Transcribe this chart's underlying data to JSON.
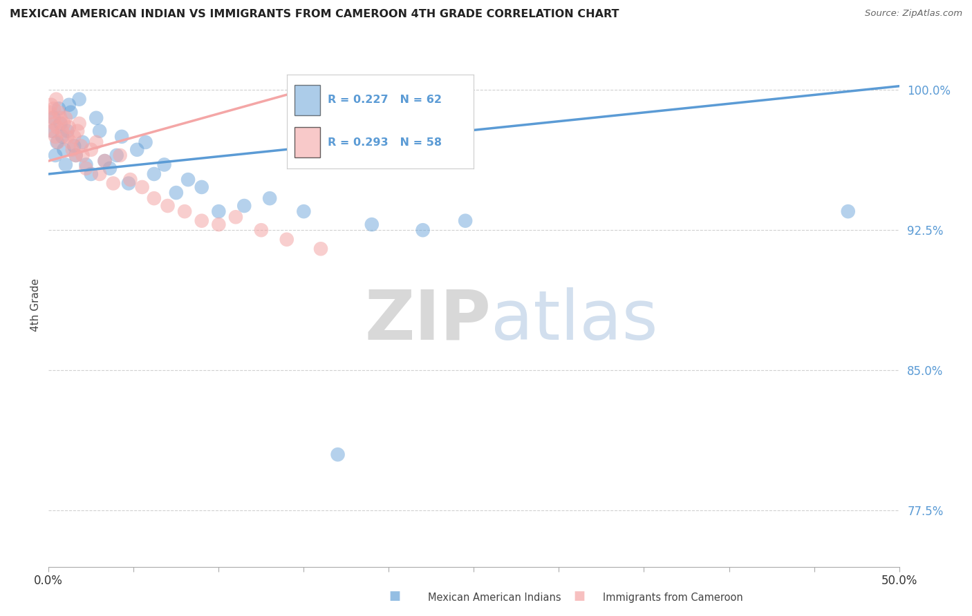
{
  "title": "MEXICAN AMERICAN INDIAN VS IMMIGRANTS FROM CAMEROON 4TH GRADE CORRELATION CHART",
  "source": "Source: ZipAtlas.com",
  "ylabel": "4th Grade",
  "y_ticks": [
    77.5,
    85.0,
    92.5,
    100.0
  ],
  "y_tick_labels": [
    "77.5%",
    "85.0%",
    "92.5%",
    "100.0%"
  ],
  "x_min": 0.0,
  "x_max": 50.0,
  "y_min": 74.5,
  "y_max": 102.5,
  "blue_color": "#5b9bd5",
  "pink_color": "#f4a6a6",
  "blue_r": "R = 0.227",
  "blue_n": "N = 62",
  "pink_r": "R = 0.293",
  "pink_n": "N = 58",
  "blue_label": "Mexican American Indians",
  "pink_label": "Immigrants from Cameroon",
  "blue_trend_x": [
    0.0,
    50.0
  ],
  "blue_trend_y": [
    95.5,
    100.2
  ],
  "pink_trend_x": [
    0.0,
    17.0
  ],
  "pink_trend_y": [
    96.2,
    100.5
  ],
  "blue_points_x": [
    0.2,
    0.3,
    0.4,
    0.5,
    0.6,
    0.7,
    0.8,
    0.9,
    1.0,
    1.1,
    1.2,
    1.3,
    1.5,
    1.6,
    1.8,
    2.0,
    2.2,
    2.5,
    2.8,
    3.0,
    3.3,
    3.6,
    4.0,
    4.3,
    4.7,
    5.2,
    5.7,
    6.2,
    6.8,
    7.5,
    8.2,
    9.0,
    10.0,
    11.5,
    13.0,
    15.0,
    17.0,
    19.0,
    22.0,
    24.5,
    47.0
  ],
  "blue_points_y": [
    97.8,
    98.5,
    96.5,
    97.2,
    99.0,
    98.2,
    97.5,
    96.8,
    96.0,
    97.8,
    99.2,
    98.8,
    97.0,
    96.5,
    99.5,
    97.2,
    96.0,
    95.5,
    98.5,
    97.8,
    96.2,
    95.8,
    96.5,
    97.5,
    95.0,
    96.8,
    97.2,
    95.5,
    96.0,
    94.5,
    95.2,
    94.8,
    93.5,
    93.8,
    94.2,
    93.5,
    80.5,
    92.8,
    92.5,
    93.0,
    93.5
  ],
  "pink_points_x": [
    0.1,
    0.15,
    0.2,
    0.25,
    0.3,
    0.35,
    0.4,
    0.45,
    0.5,
    0.55,
    0.6,
    0.7,
    0.8,
    0.9,
    1.0,
    1.1,
    1.2,
    1.3,
    1.4,
    1.5,
    1.6,
    1.7,
    1.8,
    1.9,
    2.0,
    2.2,
    2.5,
    2.8,
    3.0,
    3.3,
    3.8,
    4.2,
    4.8,
    5.5,
    6.2,
    7.0,
    8.0,
    9.0,
    10.0,
    11.0,
    12.5,
    14.0,
    16.0
  ],
  "pink_points_y": [
    98.8,
    99.2,
    98.5,
    97.8,
    99.0,
    98.2,
    97.5,
    99.5,
    98.0,
    97.2,
    98.8,
    98.5,
    97.8,
    98.2,
    98.5,
    97.5,
    98.0,
    97.2,
    96.8,
    97.5,
    96.5,
    97.8,
    98.2,
    97.0,
    96.5,
    95.8,
    96.8,
    97.2,
    95.5,
    96.2,
    95.0,
    96.5,
    95.2,
    94.8,
    94.2,
    93.8,
    93.5,
    93.0,
    92.8,
    93.2,
    92.5,
    92.0,
    91.5
  ],
  "watermark_zip": "ZIP",
  "watermark_atlas": "atlas",
  "background_color": "#ffffff",
  "grid_color": "#d0d0d0"
}
